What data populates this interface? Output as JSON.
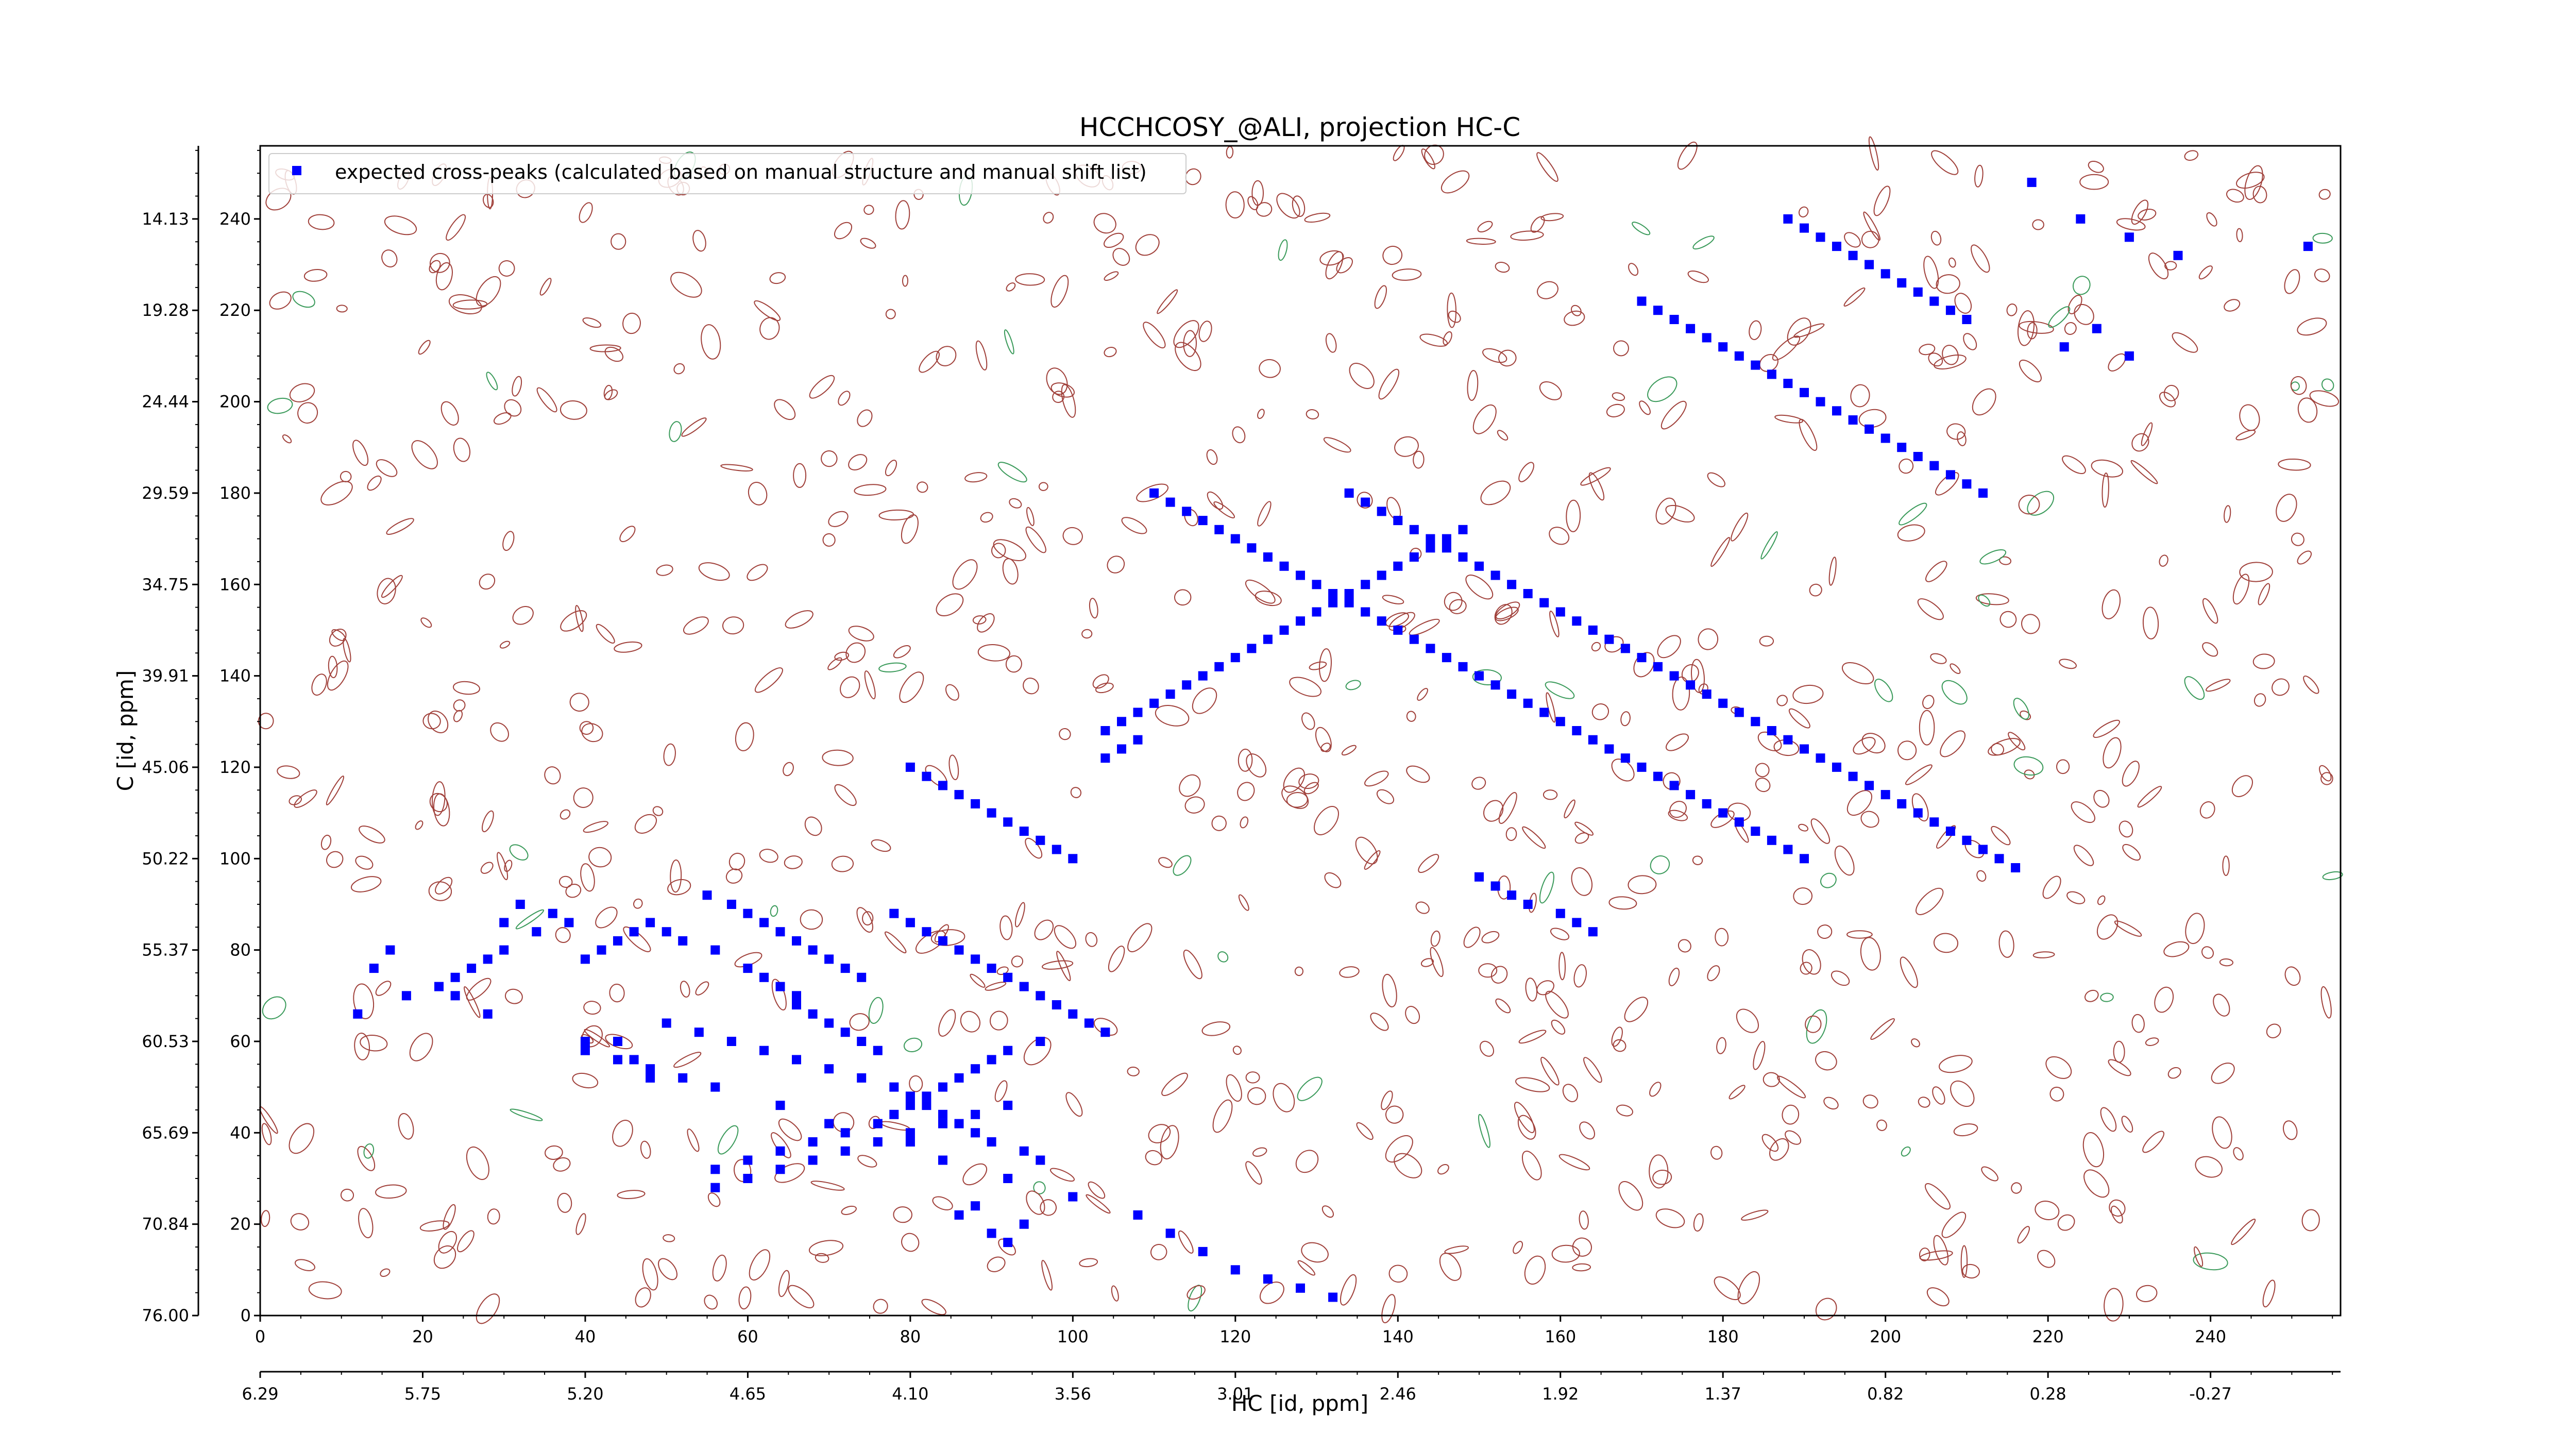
{
  "chart_data": {
    "type": "scatter",
    "title": "HCCHCOSY_@ALI, projection HC-C",
    "xlabel": "HC [id, ppm]",
    "ylabel": "C [id, ppm]",
    "grid": false,
    "legend_position": "top-left",
    "xlim": [
      0,
      256
    ],
    "ylim": [
      0,
      256
    ],
    "x_ticks": [
      "0",
      "20",
      "40",
      "60",
      "80",
      "100",
      "120",
      "140",
      "160",
      "180",
      "200",
      "220",
      "240"
    ],
    "x_ppm_ticks": [
      "6.29",
      "5.75",
      "5.20",
      "4.65",
      "4.10",
      "3.56",
      "3.01",
      "2.46",
      "1.92",
      "1.37",
      "0.82",
      "0.28",
      "-0.27"
    ],
    "y_ticks": [
      "0",
      "20",
      "40",
      "60",
      "80",
      "100",
      "120",
      "140",
      "160",
      "180",
      "200",
      "220",
      "240"
    ],
    "y_ppm_ticks": [
      "76.00",
      "70.84",
      "65.69",
      "60.53",
      "55.37",
      "50.22",
      "45.06",
      "39.91",
      "34.75",
      "29.59",
      "24.44",
      "19.28",
      "14.13"
    ],
    "series": [
      {
        "name": "expected cross-peaks (calculated based on manual structure and manual shift list)",
        "color": "#0000ff",
        "marker": "square",
        "x": [
          55,
          60,
          62,
          58,
          64,
          66,
          68,
          70,
          72,
          74,
          66,
          68,
          70,
          72,
          74,
          76,
          64,
          66,
          60,
          62,
          56,
          52,
          50,
          48,
          46,
          44,
          42,
          40,
          38,
          36,
          34,
          30,
          28,
          26,
          24,
          22,
          18,
          12,
          44,
          40,
          46,
          48,
          52,
          56,
          50,
          54,
          58,
          62,
          66,
          70,
          74,
          78,
          80,
          82,
          84,
          86,
          88,
          90,
          94,
          96,
          92,
          88,
          84,
          80,
          76,
          72,
          68,
          64,
          60,
          56,
          78,
          80,
          82,
          84,
          86,
          88,
          90,
          92,
          94,
          96,
          98,
          100,
          102,
          104,
          96,
          92,
          90,
          88,
          86,
          84,
          82,
          80,
          78,
          76,
          72,
          68,
          64,
          60,
          56,
          92,
          90,
          94,
          86,
          88,
          80,
          82,
          84,
          86,
          88,
          90,
          92,
          94,
          96,
          98,
          100,
          104,
          106,
          108,
          110,
          112,
          114,
          116,
          118,
          120,
          122,
          124,
          126,
          128,
          130,
          132,
          134,
          136,
          138,
          140,
          142,
          144,
          146,
          148,
          108,
          106,
          104,
          110,
          112,
          114,
          116,
          118,
          120,
          122,
          124,
          126,
          128,
          130,
          132,
          134,
          136,
          138,
          140,
          142,
          144,
          146,
          148,
          150,
          152,
          154,
          156,
          158,
          160,
          162,
          164,
          166,
          168,
          170,
          172,
          174,
          176,
          178,
          180,
          182,
          184,
          186,
          188,
          190,
          134,
          136,
          138,
          140,
          142,
          144,
          146,
          148,
          150,
          152,
          154,
          156,
          158,
          160,
          162,
          164,
          166,
          168,
          170,
          172,
          174,
          176,
          178,
          180,
          182,
          184,
          186,
          188,
          190,
          192,
          194,
          196,
          198,
          200,
          202,
          204,
          206,
          208,
          210,
          212,
          214,
          216,
          170,
          172,
          174,
          176,
          178,
          180,
          182,
          184,
          186,
          188,
          190,
          192,
          194,
          196,
          198,
          200,
          202,
          204,
          206,
          208,
          210,
          212,
          188,
          190,
          192,
          194,
          196,
          198,
          200,
          202,
          204,
          206,
          208,
          210,
          218,
          224,
          230,
          236,
          252,
          226,
          222,
          230,
          32,
          30,
          16,
          14,
          24,
          28,
          40,
          44,
          48,
          64,
          70,
          80,
          84,
          92,
          100,
          108,
          112,
          116,
          120,
          124,
          128,
          132,
          150,
          152,
          154,
          156,
          160,
          162,
          164
        ],
        "y": [
          92,
          88,
          86,
          90,
          84,
          82,
          80,
          78,
          76,
          74,
          68,
          66,
          64,
          62,
          60,
          58,
          72,
          70,
          76,
          74,
          80,
          82,
          84,
          86,
          84,
          82,
          80,
          78,
          86,
          88,
          84,
          80,
          78,
          76,
          74,
          72,
          70,
          66,
          60,
          58,
          56,
          54,
          52,
          50,
          64,
          62,
          60,
          58,
          56,
          54,
          52,
          50,
          48,
          46,
          44,
          42,
          40,
          38,
          36,
          34,
          46,
          44,
          42,
          40,
          38,
          36,
          34,
          32,
          30,
          28,
          88,
          86,
          84,
          82,
          80,
          78,
          76,
          74,
          72,
          70,
          68,
          66,
          64,
          62,
          60,
          58,
          56,
          54,
          52,
          50,
          48,
          46,
          44,
          42,
          40,
          38,
          36,
          34,
          32,
          16,
          18,
          20,
          22,
          24,
          120,
          118,
          116,
          114,
          112,
          110,
          108,
          106,
          104,
          102,
          100,
          128,
          130,
          132,
          134,
          136,
          138,
          140,
          142,
          144,
          146,
          148,
          150,
          152,
          154,
          156,
          158,
          160,
          162,
          164,
          166,
          168,
          170,
          172,
          126,
          124,
          122,
          180,
          178,
          176,
          174,
          172,
          170,
          168,
          166,
          164,
          162,
          160,
          158,
          156,
          154,
          152,
          150,
          148,
          146,
          144,
          142,
          140,
          138,
          136,
          134,
          132,
          130,
          128,
          126,
          124,
          122,
          120,
          118,
          116,
          114,
          112,
          110,
          108,
          106,
          104,
          102,
          100,
          180,
          178,
          176,
          174,
          172,
          170,
          168,
          166,
          164,
          162,
          160,
          158,
          156,
          154,
          152,
          150,
          148,
          146,
          144,
          142,
          140,
          138,
          136,
          134,
          132,
          130,
          128,
          126,
          124,
          122,
          120,
          118,
          116,
          114,
          112,
          110,
          108,
          106,
          104,
          102,
          100,
          98,
          222,
          220,
          218,
          216,
          214,
          212,
          210,
          208,
          206,
          204,
          202,
          200,
          198,
          196,
          194,
          192,
          190,
          188,
          186,
          184,
          182,
          180,
          240,
          238,
          236,
          234,
          232,
          230,
          228,
          226,
          224,
          222,
          220,
          218,
          248,
          240,
          236,
          232,
          234,
          216,
          212,
          210,
          90,
          86,
          80,
          76,
          70,
          66,
          60,
          56,
          52,
          46,
          42,
          38,
          34,
          30,
          26,
          22,
          18,
          14,
          10,
          8,
          6,
          4,
          96,
          94,
          92,
          90,
          88,
          86,
          84
        ]
      }
    ]
  }
}
